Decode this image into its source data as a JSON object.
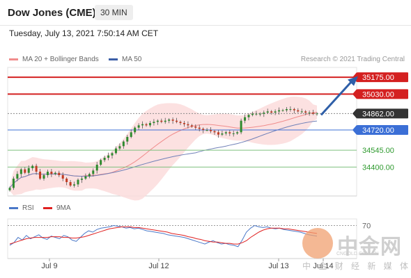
{
  "header": {
    "title": "Dow Jones (CME)",
    "timeframe": "30 MIN",
    "timestamp": "Tuesday, July 13, 2021 7:50:14 AM CET"
  },
  "legend": {
    "ma20": "MA 20 + Bollinger Bands",
    "ma50": "MA 50",
    "ma20_color": "#f08c8c",
    "ma50_color": "#3b5ea7"
  },
  "research": "Research © 2021 Trading Central",
  "rsi_legend": {
    "rsi": "RSI",
    "ma9": "9MA",
    "rsi_color": "#4a78c8",
    "ma9_color": "#e02020"
  },
  "watermark": {
    "name": "中金网",
    "sub": "中 金 财 经 新 媒 体",
    "url": "CNGOLD.COM.CN"
  },
  "chart_data": [
    {
      "type": "line",
      "subtype": "candlestick with levels",
      "ylim": [
        34150,
        35260
      ],
      "x_ticks": [
        "Jul 9",
        "Jul 12",
        "Jul 13",
        "Jul 14"
      ],
      "levels": [
        {
          "label": "35175.00",
          "value": 35175,
          "kind": "resistance",
          "color": "#d42020"
        },
        {
          "label": "35030.00",
          "value": 35030,
          "kind": "resistance",
          "color": "#d42020"
        },
        {
          "label": "34862.00",
          "value": 34862,
          "kind": "last price",
          "color": "#333333"
        },
        {
          "label": "34720.00",
          "value": 34720,
          "kind": "pivot",
          "color": "#3b6fd6"
        },
        {
          "label": "34545.00",
          "value": 34545,
          "kind": "support",
          "color": "#2e9a2e"
        },
        {
          "label": "34400.00",
          "value": 34400,
          "kind": "support",
          "color": "#2e9a2e"
        }
      ],
      "arrow": {
        "from": 34850,
        "to": 35160,
        "direction": "up"
      },
      "series": [
        {
          "values": [
            34220,
            34300,
            34340,
            34380,
            34350,
            34390,
            34410,
            34360,
            34300,
            34330,
            34360,
            34340,
            34350,
            34330,
            34300,
            34270,
            34240,
            34250,
            34290,
            34300,
            34320,
            34340,
            34370,
            34420,
            34460,
            34480,
            34500,
            34520,
            34560,
            34580,
            34620,
            34660,
            34700,
            34740,
            34760,
            34770,
            34760,
            34780,
            34790,
            34800,
            34790,
            34800,
            34810,
            34800,
            34790,
            34780,
            34770,
            34760,
            34750,
            34740,
            34730,
            34720,
            34720,
            34710,
            34700,
            34680,
            34690,
            34700,
            34690,
            34690,
            34700,
            34800,
            34830,
            34850,
            34860,
            34860,
            34860,
            34870,
            34880,
            34870,
            34880,
            34890,
            34890,
            34900,
            34900,
            34890,
            34880,
            34880,
            34870,
            34870,
            34860,
            34862
          ]
        }
      ]
    },
    {
      "type": "line",
      "title": "RSI",
      "ylim": [
        20,
        80
      ],
      "y_ticks": [
        70
      ],
      "series": [
        {
          "name": "RSI",
          "values": [
            40,
            44,
            52,
            48,
            55,
            50,
            53,
            56,
            51,
            49,
            54,
            52,
            50,
            55,
            53,
            48,
            46,
            52,
            58,
            62,
            60,
            64,
            66,
            67,
            68,
            70,
            69,
            68,
            66,
            67,
            65,
            66,
            64,
            62,
            61,
            60,
            59,
            58,
            56,
            55,
            54,
            53,
            52,
            50,
            48,
            46,
            44,
            42,
            45,
            47,
            44,
            42,
            43,
            41,
            40,
            38,
            48,
            60,
            66,
            70,
            68,
            67,
            68,
            66,
            65,
            66,
            64,
            63,
            62,
            61,
            60,
            58,
            56,
            55,
            54
          ]
        },
        {
          "name": "9MA",
          "values": [
            42,
            44,
            46,
            48,
            50,
            51,
            52,
            52,
            52,
            52,
            53,
            53,
            53,
            52,
            52,
            51,
            51,
            52,
            53,
            55,
            57,
            59,
            61,
            63,
            65,
            66,
            67,
            68,
            68,
            68,
            67,
            67,
            66,
            65,
            64,
            63,
            62,
            61,
            60,
            58,
            57,
            56,
            55,
            53,
            52,
            50,
            49,
            47,
            46,
            45,
            45,
            44,
            43,
            43,
            42,
            42,
            44,
            47,
            52,
            56,
            60,
            63,
            65,
            66,
            66,
            66,
            65,
            65,
            64,
            63,
            62,
            61,
            60,
            59,
            58
          ]
        }
      ]
    }
  ]
}
